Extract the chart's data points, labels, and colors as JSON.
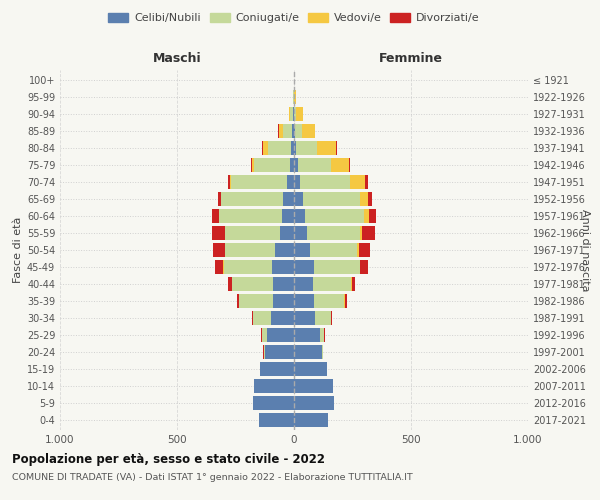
{
  "age_groups": [
    "100+",
    "95-99",
    "90-94",
    "85-89",
    "80-84",
    "75-79",
    "70-74",
    "65-69",
    "60-64",
    "55-59",
    "50-54",
    "45-49",
    "40-44",
    "35-39",
    "30-34",
    "25-29",
    "20-24",
    "15-19",
    "10-14",
    "5-9",
    "0-4"
  ],
  "birth_years": [
    "≤ 1921",
    "1922-1926",
    "1927-1931",
    "1932-1936",
    "1937-1941",
    "1942-1946",
    "1947-1951",
    "1952-1956",
    "1957-1961",
    "1962-1966",
    "1967-1971",
    "1972-1976",
    "1977-1981",
    "1982-1986",
    "1987-1991",
    "1992-1996",
    "1997-2001",
    "2002-2006",
    "2007-2011",
    "2012-2016",
    "2017-2021"
  ],
  "male_celibi": [
    1,
    2,
    4,
    8,
    12,
    18,
    30,
    45,
    50,
    60,
    80,
    95,
    90,
    90,
    100,
    115,
    125,
    145,
    170,
    175,
    150
  ],
  "male_coniugati": [
    0,
    3,
    12,
    40,
    100,
    155,
    240,
    265,
    270,
    235,
    215,
    205,
    175,
    145,
    75,
    22,
    5,
    2,
    0,
    0,
    0
  ],
  "male_vedovi": [
    0,
    1,
    5,
    18,
    22,
    8,
    5,
    4,
    2,
    2,
    1,
    2,
    1,
    0,
    0,
    0,
    0,
    0,
    0,
    0,
    0
  ],
  "male_divorziati": [
    0,
    0,
    1,
    2,
    3,
    4,
    8,
    12,
    30,
    55,
    50,
    35,
    15,
    10,
    5,
    2,
    1,
    0,
    0,
    0,
    0
  ],
  "female_celibi": [
    0,
    1,
    2,
    5,
    10,
    15,
    25,
    40,
    45,
    55,
    70,
    85,
    80,
    85,
    90,
    110,
    120,
    140,
    165,
    170,
    145
  ],
  "female_coniugati": [
    0,
    1,
    8,
    28,
    90,
    145,
    215,
    240,
    255,
    225,
    200,
    195,
    165,
    130,
    70,
    20,
    4,
    1,
    0,
    0,
    0
  ],
  "female_vedovi": [
    2,
    6,
    28,
    55,
    80,
    75,
    65,
    38,
    20,
    10,
    6,
    3,
    2,
    1,
    0,
    0,
    0,
    0,
    0,
    0,
    0
  ],
  "female_divorziati": [
    0,
    0,
    1,
    2,
    4,
    5,
    10,
    14,
    30,
    55,
    50,
    35,
    15,
    10,
    4,
    2,
    1,
    0,
    0,
    0,
    0
  ],
  "color_celibi": "#5b7faf",
  "color_coniugati": "#c5d99a",
  "color_vedovi": "#f5c842",
  "color_divorziati": "#cc2222",
  "title": "Popolazione per età, sesso e stato civile - 2022",
  "subtitle": "COMUNE DI TRADATE (VA) - Dati ISTAT 1° gennaio 2022 - Elaborazione TUTTITALIA.IT",
  "xlabel_left": "Maschi",
  "xlabel_right": "Femmine",
  "ylabel": "Fasce di età",
  "ylabel_right": "Anni di nascita",
  "xlim": 1000,
  "bg_color": "#f7f7f2",
  "grid_color": "#cccccc"
}
